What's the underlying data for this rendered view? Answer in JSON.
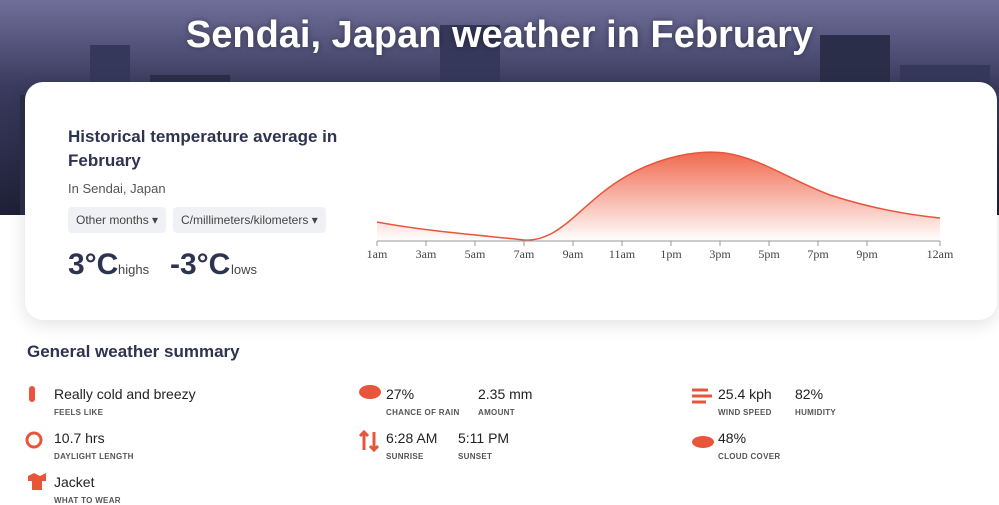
{
  "header": {
    "title": "Sendai, Japan weather in February"
  },
  "card": {
    "title": "Historical temperature average in February",
    "subtitle": "In Sendai, Japan",
    "buttons": [
      "Other months",
      "C/millimeters/kilometers"
    ],
    "high": "3°C",
    "high_label": "highs",
    "low": "-3°C",
    "low_label": "lows",
    "hours": [
      "1am",
      "3am",
      "5am",
      "7am",
      "9am",
      "11am",
      "1pm",
      "3pm",
      "5pm",
      "7pm",
      "9pm",
      "12am"
    ]
  },
  "summary": {
    "title": "General weather summary",
    "items": [
      {
        "value": "Really cold and breezy",
        "label": "FEELS LIKE"
      },
      {
        "value": "10.7 hrs",
        "label": "DAYLIGHT LENGTH"
      },
      {
        "value": "Jacket",
        "label": "WHAT TO WEAR"
      },
      {
        "value": "27%",
        "label": "CHANCE OF RAIN"
      },
      {
        "value": "2.35 mm",
        "label": "AMOUNT"
      },
      {
        "value": "6:28 AM",
        "label": "SUNRISE"
      },
      {
        "value": "5:11 PM",
        "label": "SUNSET"
      },
      {
        "value": "25.4 kph",
        "label": "WIND SPEED"
      },
      {
        "value": "82%",
        "label": "HUMIDITY"
      },
      {
        "value": "48%",
        "label": "CLOUD COVER"
      }
    ]
  }
}
